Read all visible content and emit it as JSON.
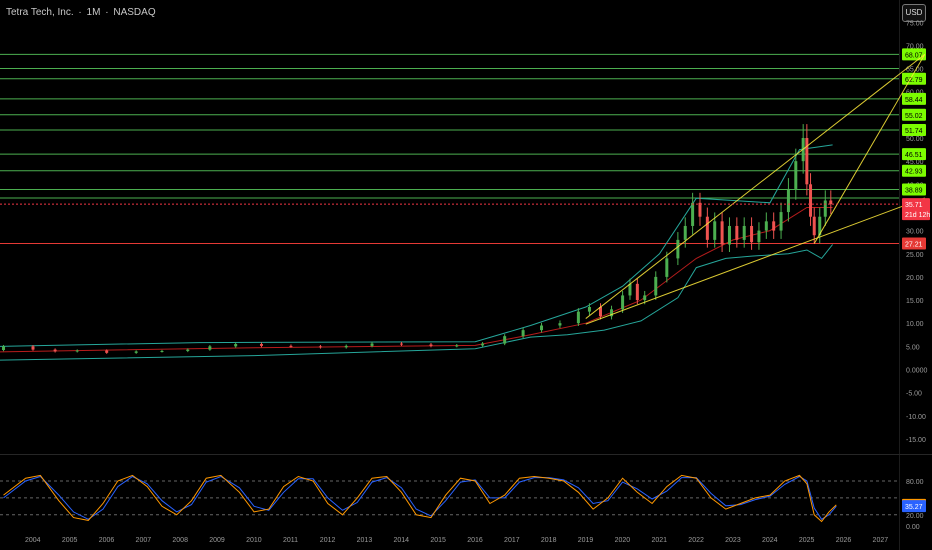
{
  "header": {
    "name": "Tetra Tech, Inc.",
    "interval": "1M",
    "exchange": "NASDAQ",
    "dot": "·"
  },
  "currency": "USD",
  "chart_data": {
    "type": "candlestick",
    "price_axis_ticks": [
      "75.00",
      "70.00",
      "65.00",
      "60.00",
      "55.00",
      "50.00",
      "45.00",
      "40.00",
      "35.00",
      "30.00",
      "25.00",
      "20.00",
      "15.00",
      "10.00",
      "5.00",
      "0.0000",
      "-5.00",
      "-10.00",
      "-15.00"
    ],
    "time_axis_labels": [
      "2004",
      "2005",
      "2006",
      "2007",
      "2008",
      "2009",
      "2010",
      "2011",
      "2012",
      "2013",
      "2014",
      "2015",
      "2016",
      "2017",
      "2018",
      "2019",
      "2020",
      "2021",
      "2022",
      "2023",
      "2024",
      "2025",
      "2026",
      "2027"
    ],
    "horizontal_levels": [
      {
        "label": "68.07",
        "value": 68.07,
        "color": "#4caf50",
        "badge": "#7cfc00"
      },
      {
        "label": "65.00",
        "value": 65.0,
        "color": "#4caf50",
        "badge": null
      },
      {
        "label": "62.79",
        "value": 62.79,
        "color": "#4caf50",
        "badge": "#7cfc00"
      },
      {
        "label": "58.44",
        "value": 58.44,
        "color": "#4caf50",
        "badge": "#7cfc00"
      },
      {
        "label": "55.02",
        "value": 55.02,
        "color": "#4caf50",
        "badge": "#7cfc00"
      },
      {
        "label": "51.74",
        "value": 51.74,
        "color": "#4caf50",
        "badge": "#7cfc00"
      },
      {
        "label": "46.51",
        "value": 46.51,
        "color": "#4caf50",
        "badge": "#7cfc00"
      },
      {
        "label": "42.93",
        "value": 42.93,
        "color": "#4caf50",
        "badge": "#7cfc00"
      },
      {
        "label": "38.89",
        "value": 38.89,
        "color": "#4caf50",
        "badge": "#7cfc00"
      },
      {
        "label": "37.05",
        "value": 37.05,
        "color": "#4caf50",
        "badge": null
      },
      {
        "label": "27.21",
        "value": 27.21,
        "color": "#e53935",
        "badge": "#e53935"
      }
    ],
    "last_price": {
      "label": "35.71",
      "countdown": "21d 12h",
      "value": 35.71,
      "color": "#f23645"
    },
    "trendlines": [
      {
        "x1": 2019.0,
        "y1": 11.0,
        "x2": 2028.2,
        "y2": 68.07
      },
      {
        "x1": 2019.0,
        "y1": 9.8,
        "x2": 2028.2,
        "y2": 37.05
      },
      {
        "x1": 2025.2,
        "y1": 27.2,
        "x2": 2028.2,
        "y2": 68.07
      }
    ],
    "candles": [
      {
        "t": 2003.2,
        "o": 4.2,
        "c": 5.0
      },
      {
        "t": 2004.0,
        "o": 5.0,
        "c": 4.3
      },
      {
        "t": 2004.6,
        "o": 4.3,
        "c": 3.9
      },
      {
        "t": 2005.2,
        "o": 3.9,
        "c": 4.1
      },
      {
        "t": 2006.0,
        "o": 4.1,
        "c": 3.6
      },
      {
        "t": 2006.8,
        "o": 3.6,
        "c": 3.9
      },
      {
        "t": 2007.5,
        "o": 3.9,
        "c": 4.0
      },
      {
        "t": 2008.2,
        "o": 4.0,
        "c": 4.3
      },
      {
        "t": 2008.8,
        "o": 4.3,
        "c": 5.0
      },
      {
        "t": 2009.5,
        "o": 5.0,
        "c": 5.5
      },
      {
        "t": 2010.2,
        "o": 5.5,
        "c": 5.1
      },
      {
        "t": 2011.0,
        "o": 5.1,
        "c": 5.0
      },
      {
        "t": 2011.8,
        "o": 5.0,
        "c": 4.8
      },
      {
        "t": 2012.5,
        "o": 4.8,
        "c": 5.1
      },
      {
        "t": 2013.2,
        "o": 5.1,
        "c": 5.6
      },
      {
        "t": 2014.0,
        "o": 5.6,
        "c": 5.4
      },
      {
        "t": 2014.8,
        "o": 5.4,
        "c": 5.1
      },
      {
        "t": 2015.5,
        "o": 5.1,
        "c": 5.2
      },
      {
        "t": 2016.2,
        "o": 5.2,
        "c": 5.6
      },
      {
        "t": 2016.8,
        "o": 5.6,
        "c": 7.2
      },
      {
        "t": 2017.3,
        "o": 7.2,
        "c": 8.5
      },
      {
        "t": 2017.8,
        "o": 8.5,
        "c": 9.5
      },
      {
        "t": 2018.3,
        "o": 9.5,
        "c": 10.0
      },
      {
        "t": 2018.8,
        "o": 10.0,
        "c": 12.5
      },
      {
        "t": 2019.1,
        "o": 12.5,
        "c": 13.5
      },
      {
        "t": 2019.4,
        "o": 13.5,
        "c": 11.5
      },
      {
        "t": 2019.7,
        "o": 11.5,
        "c": 13.0
      },
      {
        "t": 2020.0,
        "o": 13.0,
        "c": 16.0
      },
      {
        "t": 2020.2,
        "o": 16.0,
        "c": 18.5
      },
      {
        "t": 2020.4,
        "o": 18.5,
        "c": 15.0
      },
      {
        "t": 2020.6,
        "o": 15.0,
        "c": 16.0
      },
      {
        "t": 2020.9,
        "o": 16.0,
        "c": 20.0
      },
      {
        "t": 2021.2,
        "o": 20.0,
        "c": 24.0
      },
      {
        "t": 2021.5,
        "o": 24.0,
        "c": 28.0
      },
      {
        "t": 2021.7,
        "o": 28.0,
        "c": 31.0
      },
      {
        "t": 2021.9,
        "o": 31.0,
        "c": 36.0
      },
      {
        "t": 2022.1,
        "o": 36.0,
        "c": 33.0
      },
      {
        "t": 2022.3,
        "o": 33.0,
        "c": 28.0
      },
      {
        "t": 2022.5,
        "o": 28.0,
        "c": 32.0
      },
      {
        "t": 2022.7,
        "o": 32.0,
        "c": 27.0
      },
      {
        "t": 2022.9,
        "o": 27.0,
        "c": 31.0
      },
      {
        "t": 2023.1,
        "o": 31.0,
        "c": 28.0
      },
      {
        "t": 2023.3,
        "o": 28.0,
        "c": 31.0
      },
      {
        "t": 2023.5,
        "o": 31.0,
        "c": 27.5
      },
      {
        "t": 2023.7,
        "o": 27.5,
        "c": 30.0
      },
      {
        "t": 2023.9,
        "o": 30.0,
        "c": 32.0
      },
      {
        "t": 2024.1,
        "o": 32.0,
        "c": 30.0
      },
      {
        "t": 2024.3,
        "o": 30.0,
        "c": 34.0
      },
      {
        "t": 2024.5,
        "o": 34.0,
        "c": 39.0
      },
      {
        "t": 2024.7,
        "o": 39.0,
        "c": 45.0
      },
      {
        "t": 2024.9,
        "o": 45.0,
        "c": 50.0
      },
      {
        "t": 2025.0,
        "o": 50.0,
        "c": 40.0
      },
      {
        "t": 2025.1,
        "o": 40.0,
        "c": 33.0
      },
      {
        "t": 2025.2,
        "o": 33.0,
        "c": 29.0
      },
      {
        "t": 2025.35,
        "o": 29.0,
        "c": 33.0
      },
      {
        "t": 2025.5,
        "o": 33.0,
        "c": 36.5
      },
      {
        "t": 2025.65,
        "o": 36.5,
        "c": 35.71
      }
    ],
    "bollinger": {
      "upper": [
        [
          2003.0,
          5.0
        ],
        [
          2008.5,
          5.8
        ],
        [
          2016.0,
          6.0
        ],
        [
          2017.5,
          9.5
        ],
        [
          2019.0,
          13.5
        ],
        [
          2020.0,
          18.0
        ],
        [
          2021.0,
          25.0
        ],
        [
          2022.0,
          37.0
        ],
        [
          2023.0,
          36.5
        ],
        [
          2024.0,
          36.0
        ],
        [
          2024.8,
          47.5
        ],
        [
          2025.7,
          48.5
        ]
      ],
      "basis": [
        [
          2003.0,
          3.8
        ],
        [
          2010.0,
          4.7
        ],
        [
          2016.0,
          5.2
        ],
        [
          2017.5,
          7.5
        ],
        [
          2019.0,
          10.0
        ],
        [
          2020.5,
          15.0
        ],
        [
          2022.0,
          24.0
        ],
        [
          2023.0,
          28.0
        ],
        [
          2024.0,
          30.0
        ],
        [
          2025.0,
          35.0
        ],
        [
          2025.7,
          35.0
        ]
      ],
      "lower": [
        [
          2003.0,
          2.0
        ],
        [
          2010.0,
          3.0
        ],
        [
          2016.0,
          4.5
        ],
        [
          2017.5,
          7.0
        ],
        [
          2018.5,
          7.5
        ],
        [
          2019.5,
          8.5
        ],
        [
          2020.5,
          10.5
        ],
        [
          2021.5,
          15.5
        ],
        [
          2022.0,
          22.0
        ],
        [
          2022.8,
          24.0
        ],
        [
          2023.5,
          24.5
        ],
        [
          2024.5,
          25.0
        ],
        [
          2025.0,
          25.8
        ],
        [
          2025.4,
          24.0
        ],
        [
          2025.7,
          27.0
        ]
      ]
    },
    "oscillator": {
      "axis_ticks": [
        "80.00",
        "20.00",
        "0.00"
      ],
      "k_label": "37.60",
      "d_label": "35.27",
      "k_value": 37.6,
      "d_value": 35.27,
      "k_color": "#ff9800",
      "d_color": "#2962ff",
      "k": [
        [
          2003.2,
          55
        ],
        [
          2003.8,
          85
        ],
        [
          2004.2,
          90
        ],
        [
          2004.7,
          45
        ],
        [
          2005.1,
          15
        ],
        [
          2005.5,
          10
        ],
        [
          2005.9,
          40
        ],
        [
          2006.3,
          80
        ],
        [
          2006.7,
          90
        ],
        [
          2007.1,
          70
        ],
        [
          2007.5,
          35
        ],
        [
          2007.9,
          20
        ],
        [
          2008.3,
          45
        ],
        [
          2008.7,
          85
        ],
        [
          2009.1,
          90
        ],
        [
          2009.6,
          60
        ],
        [
          2010.0,
          25
        ],
        [
          2010.4,
          30
        ],
        [
          2010.8,
          70
        ],
        [
          2011.2,
          88
        ],
        [
          2011.6,
          80
        ],
        [
          2012.0,
          40
        ],
        [
          2012.4,
          20
        ],
        [
          2012.8,
          50
        ],
        [
          2013.2,
          85
        ],
        [
          2013.6,
          88
        ],
        [
          2014.0,
          60
        ],
        [
          2014.4,
          20
        ],
        [
          2014.8,
          15
        ],
        [
          2015.2,
          55
        ],
        [
          2015.6,
          85
        ],
        [
          2016.0,
          80
        ],
        [
          2016.4,
          40
        ],
        [
          2016.8,
          55
        ],
        [
          2017.2,
          85
        ],
        [
          2017.6,
          88
        ],
        [
          2018.0,
          85
        ],
        [
          2018.4,
          80
        ],
        [
          2018.8,
          60
        ],
        [
          2019.2,
          30
        ],
        [
          2019.6,
          50
        ],
        [
          2020.0,
          85
        ],
        [
          2020.4,
          60
        ],
        [
          2020.8,
          40
        ],
        [
          2021.2,
          70
        ],
        [
          2021.6,
          90
        ],
        [
          2022.0,
          85
        ],
        [
          2022.4,
          50
        ],
        [
          2022.8,
          30
        ],
        [
          2023.2,
          40
        ],
        [
          2023.6,
          50
        ],
        [
          2024.0,
          55
        ],
        [
          2024.4,
          80
        ],
        [
          2024.8,
          90
        ],
        [
          2025.0,
          75
        ],
        [
          2025.2,
          20
        ],
        [
          2025.4,
          8
        ],
        [
          2025.6,
          25
        ],
        [
          2025.8,
          37.6
        ]
      ],
      "d": [
        [
          2003.2,
          50
        ],
        [
          2003.8,
          80
        ],
        [
          2004.2,
          88
        ],
        [
          2004.7,
          55
        ],
        [
          2005.1,
          25
        ],
        [
          2005.5,
          12
        ],
        [
          2005.9,
          30
        ],
        [
          2006.3,
          70
        ],
        [
          2006.7,
          88
        ],
        [
          2007.1,
          75
        ],
        [
          2007.5,
          45
        ],
        [
          2007.9,
          25
        ],
        [
          2008.3,
          38
        ],
        [
          2008.7,
          78
        ],
        [
          2009.1,
          88
        ],
        [
          2009.6,
          68
        ],
        [
          2010.0,
          35
        ],
        [
          2010.4,
          28
        ],
        [
          2010.8,
          60
        ],
        [
          2011.2,
          84
        ],
        [
          2011.6,
          84
        ],
        [
          2012.0,
          50
        ],
        [
          2012.4,
          28
        ],
        [
          2012.8,
          42
        ],
        [
          2013.2,
          78
        ],
        [
          2013.6,
          86
        ],
        [
          2014.0,
          68
        ],
        [
          2014.4,
          30
        ],
        [
          2014.8,
          18
        ],
        [
          2015.2,
          45
        ],
        [
          2015.6,
          78
        ],
        [
          2016.0,
          82
        ],
        [
          2016.4,
          50
        ],
        [
          2016.8,
          50
        ],
        [
          2017.2,
          78
        ],
        [
          2017.6,
          86
        ],
        [
          2018.0,
          86
        ],
        [
          2018.4,
          82
        ],
        [
          2018.8,
          68
        ],
        [
          2019.2,
          40
        ],
        [
          2019.6,
          45
        ],
        [
          2020.0,
          78
        ],
        [
          2020.4,
          66
        ],
        [
          2020.8,
          48
        ],
        [
          2021.2,
          62
        ],
        [
          2021.6,
          86
        ],
        [
          2022.0,
          86
        ],
        [
          2022.4,
          58
        ],
        [
          2022.8,
          36
        ],
        [
          2023.2,
          38
        ],
        [
          2023.6,
          47
        ],
        [
          2024.0,
          53
        ],
        [
          2024.4,
          74
        ],
        [
          2024.8,
          88
        ],
        [
          2025.0,
          80
        ],
        [
          2025.2,
          32
        ],
        [
          2025.4,
          12
        ],
        [
          2025.6,
          20
        ],
        [
          2025.8,
          35.27
        ]
      ]
    }
  }
}
